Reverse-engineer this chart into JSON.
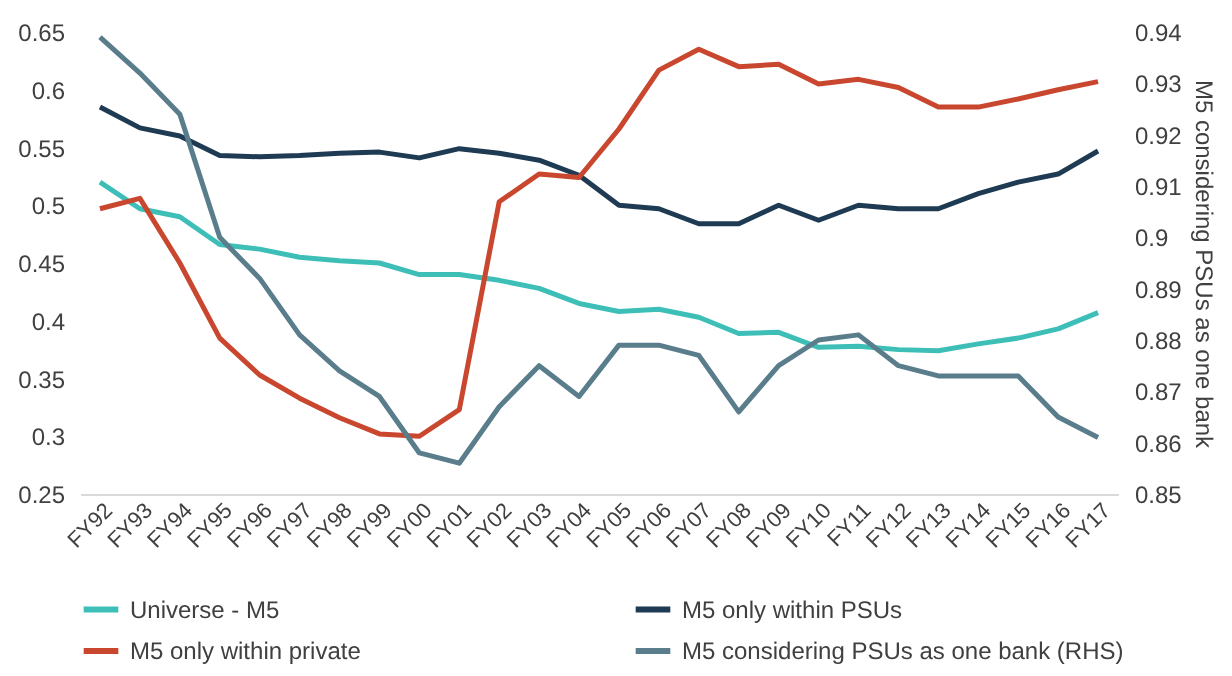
{
  "chart_data": {
    "type": "line",
    "ylabel": null,
    "y2label": "M5 considering PSUs as one bank",
    "categories": [
      "FY92",
      "FY93",
      "FY94",
      "FY95",
      "FY96",
      "FY97",
      "FY98",
      "FY99",
      "FY00",
      "FY01",
      "FY02",
      "FY03",
      "FY04",
      "FY05",
      "FY06",
      "FY07",
      "FY08",
      "FY09",
      "FY10",
      "FY11",
      "FY12",
      "FY13",
      "FY14",
      "FY15",
      "FY16",
      "FY17"
    ],
    "series": [
      {
        "name": "Universe - M5",
        "color": "#3dbfb8",
        "values": [
          0.52,
          0.497,
          0.49,
          0.466,
          0.462,
          0.455,
          0.452,
          0.45,
          0.44,
          0.44,
          0.435,
          0.428,
          0.415,
          0.408,
          0.41,
          0.403,
          0.389,
          0.39,
          0.377,
          0.378,
          0.375,
          0.374,
          0.38,
          0.385,
          0.393,
          0.407
        ]
      },
      {
        "name": "M5 only within PSUs",
        "color": "#1f3b53",
        "values": [
          0.585,
          0.567,
          0.56,
          0.543,
          0.542,
          0.543,
          0.545,
          0.546,
          0.541,
          0.549,
          0.545,
          0.539,
          0.526,
          0.5,
          0.497,
          0.484,
          0.484,
          0.5,
          0.487,
          0.5,
          0.497,
          0.497,
          0.51,
          0.52,
          0.527,
          0.547
        ]
      },
      {
        "name": "M5 only within private",
        "color": "#c9472e",
        "values": [
          0.497,
          0.506,
          0.45,
          0.385,
          0.353,
          0.333,
          0.316,
          0.302,
          0.3,
          0.323,
          0.503,
          0.527,
          0.524,
          0.566,
          0.617,
          0.635,
          0.62,
          0.622,
          0.605,
          0.609,
          0.602,
          0.585,
          0.585,
          0.592,
          0.6,
          0.607
        ]
      },
      {
        "name": "M5 considering PSUs as one bank (RHS)",
        "color": "#5a7d8c",
        "axis": "y2",
        "values": [
          0.939,
          0.932,
          0.924,
          0.9,
          0.892,
          0.881,
          0.874,
          0.869,
          0.858,
          0.856,
          0.867,
          0.875,
          0.869,
          0.879,
          0.879,
          0.877,
          0.866,
          0.875,
          0.88,
          0.881,
          0.875,
          0.873,
          0.873,
          0.873,
          0.865,
          0.861
        ]
      }
    ],
    "ylim": [
      0.25,
      0.65
    ],
    "yticks": [
      0.25,
      0.3,
      0.35,
      0.4,
      0.45,
      0.5,
      0.55,
      0.6,
      0.65
    ],
    "y2lim": [
      0.85,
      0.94
    ],
    "y2ticks": [
      0.85,
      0.86,
      0.87,
      0.88,
      0.89,
      0.9,
      0.91,
      0.92,
      0.93,
      0.94
    ],
    "grid": false,
    "legend": "bottom",
    "marker": "none",
    "line_style": "solid"
  }
}
